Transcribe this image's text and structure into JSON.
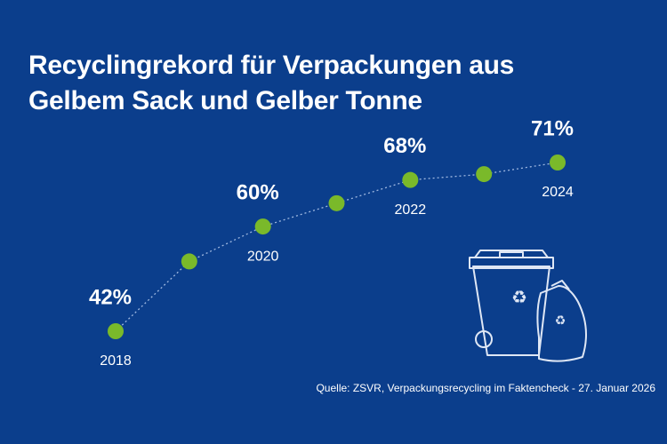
{
  "chart_data": {
    "type": "line",
    "title": "Recyclingrekord für Verpackungen aus Gelbem Sack und Gelber Tonne",
    "categories": [
      "2018",
      null,
      "2020",
      null,
      "2022",
      null,
      "2024"
    ],
    "values": [
      42,
      54,
      60,
      64,
      68,
      69,
      71
    ],
    "value_labels": [
      "42%",
      null,
      "60%",
      null,
      "68%",
      null,
      "71%"
    ],
    "color": "#7ab92a",
    "line_color": "#9fb8e0",
    "source": "Quelle: ZSVR, Verpackungsrecycling im Faktencheck - 27. Januar 2026"
  }
}
